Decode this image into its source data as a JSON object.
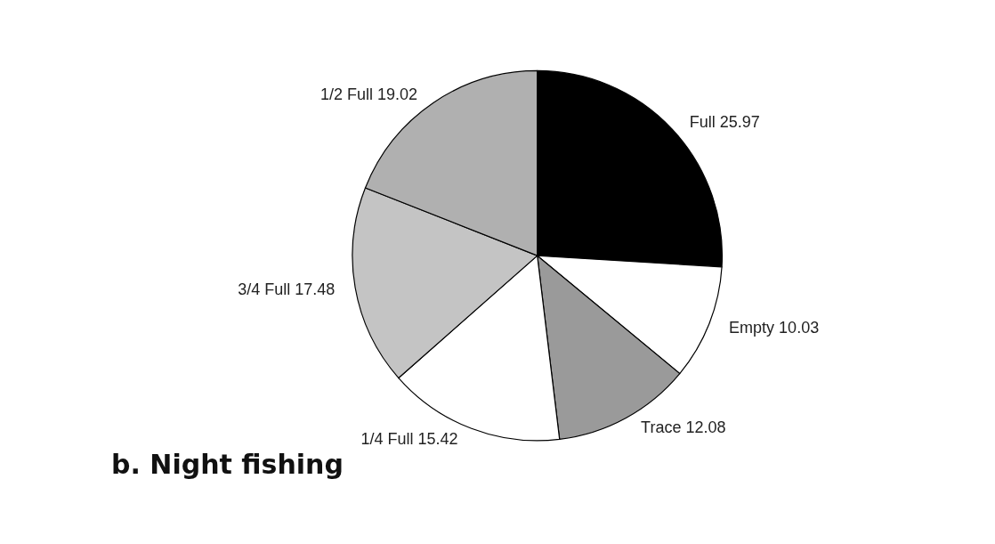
{
  "chart_data": {
    "type": "pie",
    "title": "b. Night fishing",
    "categories": [
      "Full",
      "Empty",
      "Trace",
      "1/4 Full",
      "3/4 Full",
      "1/2 Full"
    ],
    "values": [
      25.97,
      10.03,
      12.08,
      15.42,
      17.48,
      19.02
    ],
    "colors": [
      "#000000",
      "#ffffff",
      "#9a9a9a",
      "#ffffff",
      "#c4c4c4",
      "#b0b0b0"
    ],
    "data_labels": true
  }
}
